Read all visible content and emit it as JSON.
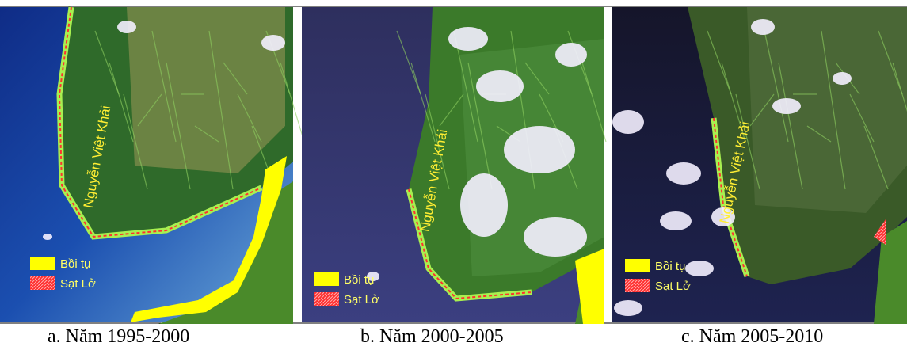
{
  "panels": [
    {
      "caption": "a.  Năm 1995-2000",
      "place_label": "Nguyễn Việt Khải",
      "legend": [
        "Bồi tụ",
        "Sạt Lở"
      ]
    },
    {
      "caption": "b.  Năm 2000-2005",
      "place_label": "Nguyễn Việt Khải",
      "legend": [
        "Bồi tụ",
        "Sạt Lở"
      ]
    },
    {
      "caption": "c.  Năm 2005-2010",
      "place_label": "Nguyễn Việt Khải",
      "legend": [
        "Bồi tụ",
        "Sạt Lở"
      ]
    }
  ]
}
